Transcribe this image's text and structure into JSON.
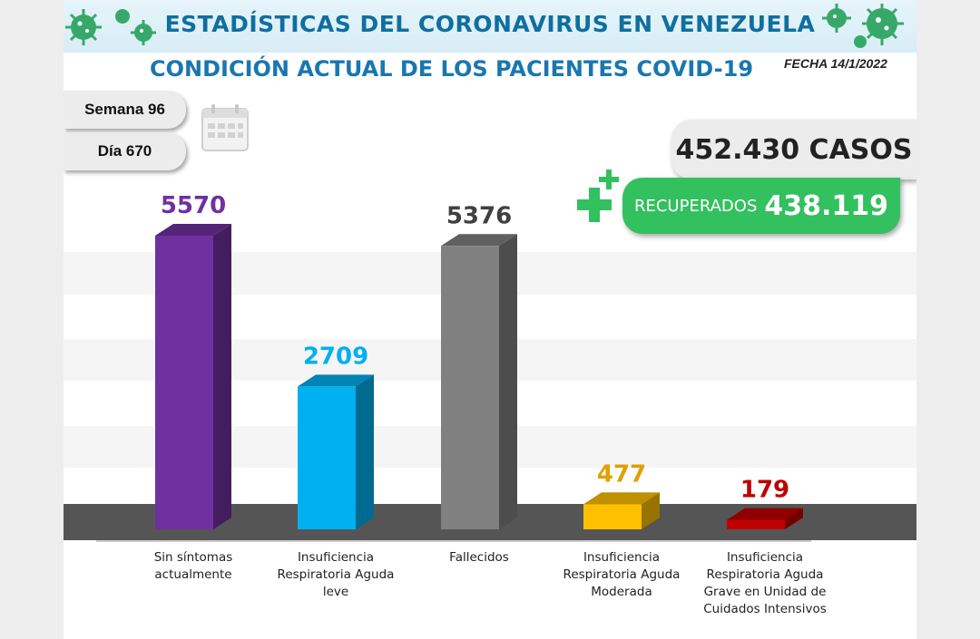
{
  "header": {
    "title": "ESTADÍSTICAS DEL CORONAVIRUS EN VENEZUELA",
    "subtitle": "CONDICIÓN ACTUAL DE LOS PACIENTES COVID-19",
    "date": "FECHA 14/1/2022"
  },
  "week_label": "Semana 96",
  "day_label": "Día 670",
  "cases": "452.430 CASOS",
  "recovered": {
    "label": "RECUPERADOS",
    "value": "438.119"
  },
  "colors": {
    "banner_text": "#0f6fa0",
    "subtitle": "#1977b0",
    "recovered_bg": "#33c05e",
    "base": "#555555"
  },
  "icons": [
    "virus-icon",
    "calendar-icon",
    "plus-icon"
  ],
  "chart_data": {
    "type": "bar",
    "categories": [
      "Sin síntomas actualmente",
      "Insuficiencia Respiratoria Aguda leve",
      "Fallecidos",
      "Insuficiencia Respiratoria Aguda Moderada",
      "Insuficiencia Respiratoria Aguda Grave en Unidad de Cuidados Intensivos"
    ],
    "values": [
      5570,
      2709,
      5376,
      477,
      179
    ],
    "value_labels": [
      "5570",
      "2709",
      "5376",
      "477",
      "179"
    ],
    "colors": [
      "#7030a0",
      "#00b0f0",
      "#808080",
      "#ffc000",
      "#c00000"
    ],
    "label_colors": [
      "#7030a0",
      "#00b0f0",
      "#404040",
      "#e0a000",
      "#c00000"
    ],
    "title": "",
    "xlabel": "",
    "ylabel": "",
    "ylim": [
      0,
      5570
    ],
    "grid": true
  }
}
